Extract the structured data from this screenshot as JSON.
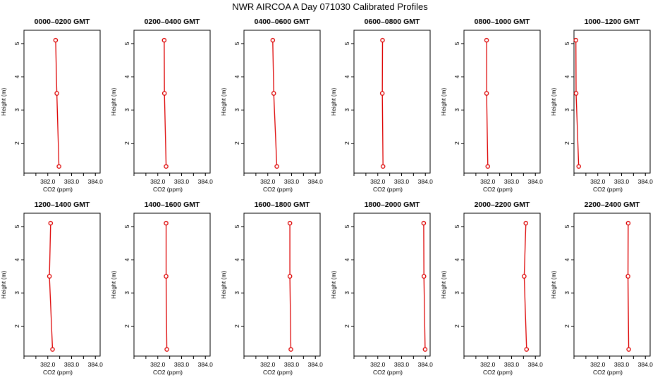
{
  "title": "NWR AIRCOA A  Day 071030  Calibrated Profiles",
  "chart_data": [
    {
      "type": "line",
      "title": "0000–0200 GMT",
      "xlabel": "CO2 (ppm)",
      "ylabel": "Height (m)",
      "xlim": [
        381.0,
        384.2
      ],
      "ylim": [
        1.1,
        5.4
      ],
      "xticks": [
        "382.0",
        "383.0",
        "384.0"
      ],
      "yticks": [
        "2",
        "3",
        "4",
        "5"
      ],
      "series": [
        {
          "color": "#dd0000",
          "x": [
            382.47,
            382.38,
            382.33
          ],
          "y": [
            1.3,
            3.5,
            5.1
          ]
        }
      ]
    },
    {
      "type": "line",
      "title": "0200–0400 GMT",
      "xlabel": "CO2 (ppm)",
      "ylabel": "Height (m)",
      "xlim": [
        381.0,
        384.2
      ],
      "ylim": [
        1.1,
        5.4
      ],
      "xticks": [
        "382.0",
        "383.0",
        "384.0"
      ],
      "yticks": [
        "2",
        "3",
        "4",
        "5"
      ],
      "series": [
        {
          "color": "#dd0000",
          "x": [
            382.35,
            382.28,
            382.27
          ],
          "y": [
            1.3,
            3.5,
            5.1
          ]
        }
      ]
    },
    {
      "type": "line",
      "title": "0400–0600 GMT",
      "xlabel": "CO2 (ppm)",
      "ylabel": "Height (m)",
      "xlim": [
        381.0,
        384.2
      ],
      "ylim": [
        1.1,
        5.4
      ],
      "xticks": [
        "382.0",
        "383.0",
        "384.0"
      ],
      "yticks": [
        "2",
        "3",
        "4",
        "5"
      ],
      "series": [
        {
          "color": "#dd0000",
          "x": [
            382.38,
            382.25,
            382.21
          ],
          "y": [
            1.3,
            3.5,
            5.1
          ]
        }
      ]
    },
    {
      "type": "line",
      "title": "0600–0800 GMT",
      "xlabel": "CO2 (ppm)",
      "ylabel": "Height (m)",
      "xlim": [
        381.0,
        384.2
      ],
      "ylim": [
        1.1,
        5.4
      ],
      "xticks": [
        "382.0",
        "383.0",
        "384.0"
      ],
      "yticks": [
        "2",
        "3",
        "4",
        "5"
      ],
      "series": [
        {
          "color": "#dd0000",
          "x": [
            382.22,
            382.19,
            382.2
          ],
          "y": [
            1.3,
            3.5,
            5.1
          ]
        }
      ]
    },
    {
      "type": "line",
      "title": "0800–1000 GMT",
      "xlabel": "CO2 (ppm)",
      "ylabel": "Height (m)",
      "xlim": [
        381.0,
        384.2
      ],
      "ylim": [
        1.1,
        5.4
      ],
      "xticks": [
        "382.0",
        "383.0",
        "384.0"
      ],
      "yticks": [
        "2",
        "3",
        "4",
        "5"
      ],
      "series": [
        {
          "color": "#dd0000",
          "x": [
            382.0,
            381.95,
            381.95
          ],
          "y": [
            1.3,
            3.5,
            5.1
          ]
        }
      ]
    },
    {
      "type": "line",
      "title": "1000–1200 GMT",
      "xlabel": "CO2 (ppm)",
      "ylabel": "Height (m)",
      "xlim": [
        381.0,
        384.2
      ],
      "ylim": [
        1.1,
        5.4
      ],
      "xticks": [
        "382.0",
        "383.0",
        "384.0"
      ],
      "yticks": [
        "2",
        "3",
        "4",
        "5"
      ],
      "series": [
        {
          "color": "#dd0000",
          "x": [
            381.2,
            381.09,
            381.08
          ],
          "y": [
            1.3,
            3.5,
            5.1
          ]
        }
      ]
    },
    {
      "type": "line",
      "title": "1200–1400 GMT",
      "xlabel": "CO2 (ppm)",
      "ylabel": "Height (m)",
      "xlim": [
        381.0,
        384.2
      ],
      "ylim": [
        1.1,
        5.4
      ],
      "xticks": [
        "382.0",
        "383.0",
        "384.0"
      ],
      "yticks": [
        "2",
        "3",
        "4",
        "5"
      ],
      "series": [
        {
          "color": "#dd0000",
          "x": [
            382.2,
            382.07,
            382.12
          ],
          "y": [
            1.3,
            3.5,
            5.1
          ]
        }
      ]
    },
    {
      "type": "line",
      "title": "1400–1600 GMT",
      "xlabel": "CO2 (ppm)",
      "ylabel": "Height (m)",
      "xlim": [
        381.0,
        384.2
      ],
      "ylim": [
        1.1,
        5.4
      ],
      "xticks": [
        "382.0",
        "383.0",
        "384.0"
      ],
      "yticks": [
        "2",
        "3",
        "4",
        "5"
      ],
      "series": [
        {
          "color": "#dd0000",
          "x": [
            382.38,
            382.35,
            382.35
          ],
          "y": [
            1.3,
            3.5,
            5.1
          ]
        }
      ]
    },
    {
      "type": "line",
      "title": "1600–1800 GMT",
      "xlabel": "CO2 (ppm)",
      "ylabel": "Height (m)",
      "xlim": [
        381.0,
        384.2
      ],
      "ylim": [
        1.1,
        5.4
      ],
      "xticks": [
        "382.0",
        "383.0",
        "384.0"
      ],
      "yticks": [
        "2",
        "3",
        "4",
        "5"
      ],
      "series": [
        {
          "color": "#dd0000",
          "x": [
            382.97,
            382.93,
            382.93
          ],
          "y": [
            1.3,
            3.5,
            5.1
          ]
        }
      ]
    },
    {
      "type": "line",
      "title": "1800–2000 GMT",
      "xlabel": "CO2 (ppm)",
      "ylabel": "Height (m)",
      "xlim": [
        381.0,
        384.2
      ],
      "ylim": [
        1.1,
        5.4
      ],
      "xticks": [
        "382.0",
        "383.0",
        "384.0"
      ],
      "yticks": [
        "2",
        "3",
        "4",
        "5"
      ],
      "series": [
        {
          "color": "#dd0000",
          "x": [
            383.99,
            383.94,
            383.93
          ],
          "y": [
            1.3,
            3.5,
            5.1
          ]
        }
      ]
    },
    {
      "type": "line",
      "title": "2000–2200 GMT",
      "xlabel": "CO2 (ppm)",
      "ylabel": "Height (m)",
      "xlim": [
        381.0,
        384.2
      ],
      "ylim": [
        1.1,
        5.4
      ],
      "xticks": [
        "382.0",
        "383.0",
        "384.0"
      ],
      "yticks": [
        "2",
        "3",
        "4",
        "5"
      ],
      "series": [
        {
          "color": "#dd0000",
          "x": [
            383.63,
            383.53,
            383.6
          ],
          "y": [
            1.3,
            3.5,
            5.1
          ]
        }
      ]
    },
    {
      "type": "line",
      "title": "2200–2400 GMT",
      "xlabel": "CO2 (ppm)",
      "ylabel": "Height (m)",
      "xlim": [
        381.0,
        384.2
      ],
      "ylim": [
        1.1,
        5.4
      ],
      "xticks": [
        "382.0",
        "383.0",
        "384.0"
      ],
      "yticks": [
        "2",
        "3",
        "4",
        "5"
      ],
      "series": [
        {
          "color": "#dd0000",
          "x": [
            383.3,
            383.27,
            383.28
          ],
          "y": [
            1.3,
            3.5,
            5.1
          ]
        }
      ]
    }
  ]
}
